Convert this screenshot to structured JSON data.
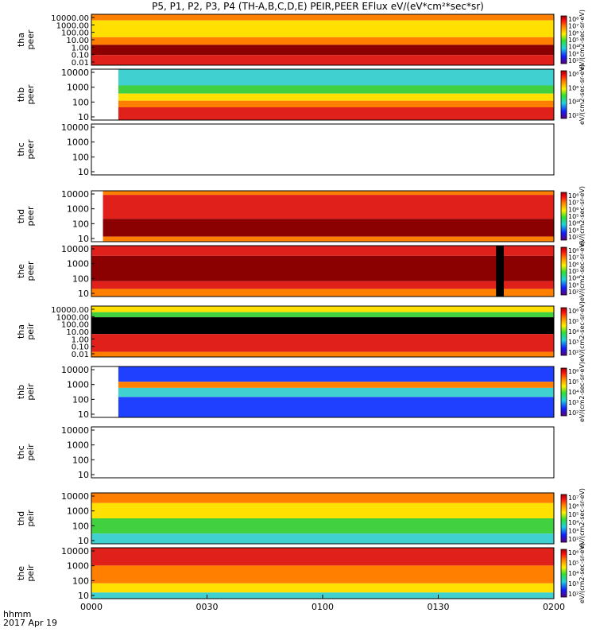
{
  "chart_data": {
    "type": "heatmap",
    "title": "P5, P1, P2, P3, P4 (TH-A,B,C,D,E) PEIR,PEER EFlux eV/(eV*cm²*sec*sr)",
    "x_axis": {
      "label_line1": "hhmm",
      "label_line2": "2017 Apr 19",
      "range_minutes": [
        0,
        120
      ],
      "ticks": [
        {
          "minute": 0,
          "label": "0000"
        },
        {
          "minute": 30,
          "label": "0030"
        },
        {
          "minute": 60,
          "label": "0100"
        },
        {
          "minute": 90,
          "label": "0130"
        },
        {
          "minute": 120,
          "label": "0200"
        }
      ]
    },
    "panels": [
      {
        "probe": "tha",
        "type": "peer",
        "y_ticks": [
          "10000.00",
          "1000.00",
          "100.00",
          "10.00",
          "1.00",
          "0.10",
          "0.01"
        ],
        "cbar_ticks": [
          "10⁸",
          "10⁷",
          "10⁶",
          "10⁵",
          "10⁴",
          "10³",
          "10²"
        ],
        "cbar_label": "eV/(cm2-sec-sr-eV)",
        "data_start_min": 0,
        "gap_min": null
      },
      {
        "probe": "thb",
        "type": "peer",
        "y_ticks": [
          "10000",
          "1000",
          "100",
          "10"
        ],
        "cbar_ticks": [
          "10⁸",
          "10⁶",
          "10⁴",
          "10²"
        ],
        "cbar_label": "eV/(cm2-sec-sr-eV)",
        "data_start_min": 7,
        "gap_min": null
      },
      {
        "probe": "thc",
        "type": "peer",
        "y_ticks": [
          "10000",
          "1000",
          "100",
          "10"
        ],
        "cbar_ticks": [],
        "cbar_label": "",
        "data_start_min": null,
        "gap_min": null
      },
      {
        "probe": "thd",
        "type": "peer",
        "y_ticks": [
          "10000",
          "1000",
          "100",
          "10"
        ],
        "cbar_ticks": [
          "10⁸",
          "10⁷",
          "10⁶",
          "10⁵",
          "10⁴",
          "10³",
          "10²"
        ],
        "cbar_label": "eV/(cm2-sec-sr-eV)",
        "data_start_min": 3,
        "gap_min": null
      },
      {
        "probe": "the",
        "type": "peer",
        "y_ticks": [
          "10000",
          "1000",
          "100",
          "10"
        ],
        "cbar_ticks": [
          "10⁸",
          "10⁷",
          "10⁶",
          "10⁵",
          "10⁴",
          "10³",
          "10²"
        ],
        "cbar_label": "eV/(cm2-sec-sr-eV)",
        "data_start_min": 0,
        "gap_min": [
          105,
          107
        ]
      },
      {
        "probe": "tha",
        "type": "peir",
        "y_ticks": [
          "10000.00",
          "1000.00",
          "100.00",
          "10.00",
          "1.00",
          "0.10",
          "0.01"
        ],
        "cbar_ticks": [
          "10⁶",
          "10⁵",
          "10⁴",
          "10³",
          "10²"
        ],
        "cbar_label": "eV/(cm2-sec-sr-eV)",
        "data_start_min": 0,
        "gap_min": null
      },
      {
        "probe": "thb",
        "type": "peir",
        "y_ticks": [
          "10000",
          "1000",
          "100",
          "10"
        ],
        "cbar_ticks": [
          "10⁶",
          "10⁵",
          "10⁴",
          "10³",
          "10²"
        ],
        "cbar_label": "eV/(cm2-sec-sr-eV)",
        "data_start_min": 7,
        "gap_min": null
      },
      {
        "probe": "thc",
        "type": "peir",
        "y_ticks": [
          "10000",
          "1000",
          "100",
          "10"
        ],
        "cbar_ticks": [],
        "cbar_label": "",
        "data_start_min": null,
        "gap_min": null
      },
      {
        "probe": "thd",
        "type": "peir",
        "y_ticks": [
          "10000",
          "1000",
          "100",
          "10"
        ],
        "cbar_ticks": [
          "10⁷",
          "10⁶",
          "10⁵",
          "10⁴",
          "10³",
          "10²"
        ],
        "cbar_label": "eV/(cm2-sec-sr-eV)",
        "data_start_min": 0,
        "gap_min": null
      },
      {
        "probe": "the",
        "type": "peir",
        "y_ticks": [
          "10000",
          "1000",
          "100",
          "10"
        ],
        "cbar_ticks": [
          "10⁶",
          "10⁵",
          "10⁴",
          "10³",
          "10²"
        ],
        "cbar_label": "eV/(cm2-sec-sr-eV)",
        "data_start_min": 0,
        "gap_min": null
      }
    ]
  },
  "colors": {
    "dark_red": "#8b0000",
    "red": "#e0201a",
    "orange": "#ff8000",
    "yellow": "#ffe000",
    "green": "#40d040",
    "cyan": "#40d0d0",
    "blue": "#2040ff",
    "black": "#000000"
  }
}
